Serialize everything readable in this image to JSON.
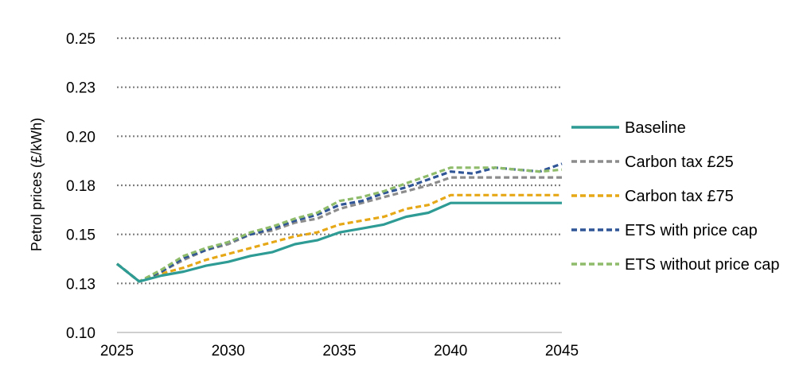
{
  "chart_data": {
    "type": "line",
    "title": "",
    "xlabel": "",
    "ylabel": "Petrol prices (£/kWh)",
    "xlim": [
      2025,
      2045
    ],
    "ylim": [
      0.1,
      0.25
    ],
    "x_ticks": [
      2025,
      2030,
      2035,
      2040,
      2045
    ],
    "x_tick_labels": [
      "2025",
      "2030",
      "2035",
      "2040",
      "2045"
    ],
    "y_ticks": [
      0.1,
      0.125,
      0.15,
      0.175,
      0.2,
      0.225,
      0.25
    ],
    "y_tick_labels": [
      "0.10",
      "0.13",
      "0.15",
      "0.18",
      "0.20",
      "0.23",
      "0.25"
    ],
    "grid": "horizontal dotted",
    "legend_position": "right",
    "x": [
      2025,
      2026,
      2027,
      2028,
      2029,
      2030,
      2031,
      2032,
      2033,
      2034,
      2035,
      2036,
      2037,
      2038,
      2039,
      2040,
      2041,
      2042,
      2043,
      2044,
      2045
    ],
    "series": [
      {
        "name": "Baseline",
        "color": "#2e9c94",
        "dash": "solid",
        "values": [
          0.135,
          0.126,
          0.129,
          0.131,
          0.134,
          0.136,
          0.139,
          0.141,
          0.145,
          0.147,
          0.151,
          0.153,
          0.155,
          0.159,
          0.161,
          0.166,
          0.166,
          0.166,
          0.166,
          0.166,
          0.166
        ]
      },
      {
        "name": "Carbon tax £25",
        "color": "#8c8c8c",
        "dash": "dashed",
        "values": [
          0.135,
          0.126,
          0.131,
          0.137,
          0.142,
          0.145,
          0.15,
          0.152,
          0.156,
          0.158,
          0.163,
          0.166,
          0.169,
          0.172,
          0.175,
          0.179,
          0.179,
          0.179,
          0.179,
          0.179,
          0.179
        ]
      },
      {
        "name": "Carbon tax £75",
        "color": "#e6a817",
        "dash": "dashed",
        "values": [
          0.135,
          0.126,
          0.13,
          0.133,
          0.137,
          0.14,
          0.143,
          0.146,
          0.149,
          0.151,
          0.155,
          0.157,
          0.159,
          0.163,
          0.165,
          0.17,
          0.17,
          0.17,
          0.17,
          0.17,
          0.17
        ]
      },
      {
        "name": "ETS with price cap",
        "color": "#2f5597",
        "dash": "dashed",
        "values": [
          0.135,
          0.126,
          0.131,
          0.138,
          0.142,
          0.146,
          0.15,
          0.153,
          0.157,
          0.16,
          0.165,
          0.167,
          0.171,
          0.174,
          0.178,
          0.182,
          0.181,
          0.184,
          0.183,
          0.182,
          0.186
        ]
      },
      {
        "name": "ETS without price cap",
        "color": "#8fbc6a",
        "dash": "dashed",
        "values": [
          0.135,
          0.126,
          0.132,
          0.139,
          0.143,
          0.146,
          0.151,
          0.154,
          0.158,
          0.161,
          0.167,
          0.169,
          0.172,
          0.176,
          0.18,
          0.184,
          0.184,
          0.184,
          0.183,
          0.182,
          0.183
        ]
      }
    ]
  }
}
